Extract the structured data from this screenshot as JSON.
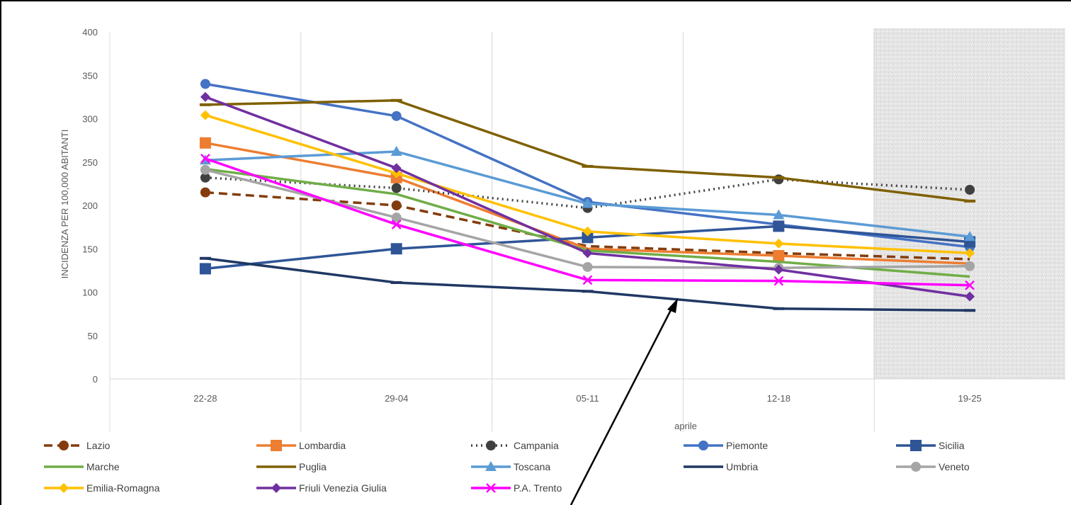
{
  "chart_data": {
    "type": "line",
    "title": "",
    "xlabel": "aprile",
    "ylabel": "INCIDENZA PER 100,000 ABITANTI",
    "categories": [
      "22-28",
      "29-04",
      "05-11",
      "12-18",
      "19-25"
    ],
    "ylim": [
      0,
      400
    ],
    "yticks": [
      0,
      50,
      100,
      150,
      200,
      250,
      300,
      350,
      400
    ],
    "grid": "vertical",
    "legend_position": "bottom",
    "shaded_category": "19-25",
    "series": [
      {
        "name": "Lazio",
        "values": [
          215,
          200,
          153,
          145,
          138
        ],
        "color": "#843C0C",
        "marker": "circle",
        "dash": "dashed",
        "markers_at": [
          0,
          1
        ]
      },
      {
        "name": "Lombardia",
        "values": [
          272,
          232,
          150,
          142,
          133
        ],
        "color": "#ED7D31",
        "marker": "square",
        "dash": "solid",
        "markers_at": [
          0,
          1,
          3
        ]
      },
      {
        "name": "Campania",
        "values": [
          232,
          220,
          197,
          230,
          218
        ],
        "color": "#404040",
        "marker": "circle",
        "dash": "dotted",
        "markers_at": [
          0,
          1,
          2,
          3,
          4
        ]
      },
      {
        "name": "Piemonte",
        "values": [
          340,
          303,
          204,
          178,
          152
        ],
        "color": "#4472C4",
        "marker": "circle",
        "dash": "solid",
        "markers_at": [
          0,
          1,
          2,
          4
        ]
      },
      {
        "name": "Sicilia",
        "values": [
          127,
          150,
          163,
          176,
          158
        ],
        "color": "#2F5597",
        "marker": "square",
        "dash": "solid",
        "markers_at": [
          0,
          1,
          2,
          3,
          4
        ]
      },
      {
        "name": "Marche",
        "values": [
          242,
          213,
          148,
          135,
          118
        ],
        "color": "#70AD47",
        "marker": "none",
        "dash": "solid",
        "markers_at": []
      },
      {
        "name": "Puglia",
        "values": [
          316,
          321,
          245,
          232,
          205
        ],
        "color": "#7F6000",
        "marker": "dash",
        "dash": "solid",
        "markers_at": [
          0,
          1,
          2,
          3,
          4
        ]
      },
      {
        "name": "Toscana",
        "values": [
          252,
          262,
          202,
          189,
          164
        ],
        "color": "#5B9BD5",
        "marker": "triangle",
        "dash": "solid",
        "markers_at": [
          0,
          1,
          2,
          3,
          4
        ]
      },
      {
        "name": "Umbria",
        "values": [
          139,
          111,
          101,
          81,
          79
        ],
        "color": "#203864",
        "marker": "dash",
        "dash": "solid",
        "markers_at": [
          0,
          1,
          2,
          3,
          4
        ]
      },
      {
        "name": "Veneto",
        "values": [
          241,
          186,
          129,
          128,
          130
        ],
        "color": "#A5A5A5",
        "marker": "circle",
        "dash": "solid",
        "markers_at": [
          0,
          1,
          2,
          3,
          4
        ]
      },
      {
        "name": "Emilia-Romagna",
        "values": [
          304,
          237,
          170,
          156,
          145
        ],
        "color": "#FFC000",
        "marker": "diamond",
        "dash": "solid",
        "markers_at": [
          0,
          1,
          2,
          3,
          4
        ]
      },
      {
        "name": "Friuli Venezia Giulia",
        "values": [
          325,
          243,
          145,
          126,
          95
        ],
        "color": "#7030A0",
        "marker": "diamond",
        "dash": "solid",
        "markers_at": [
          0,
          1,
          2,
          3,
          4
        ]
      },
      {
        "name": "P.A. Trento",
        "values": [
          254,
          178,
          114,
          113,
          108
        ],
        "color": "#FF00FF",
        "marker": "x",
        "dash": "solid",
        "markers_at": [
          0,
          1,
          2,
          3,
          4
        ]
      }
    ]
  }
}
